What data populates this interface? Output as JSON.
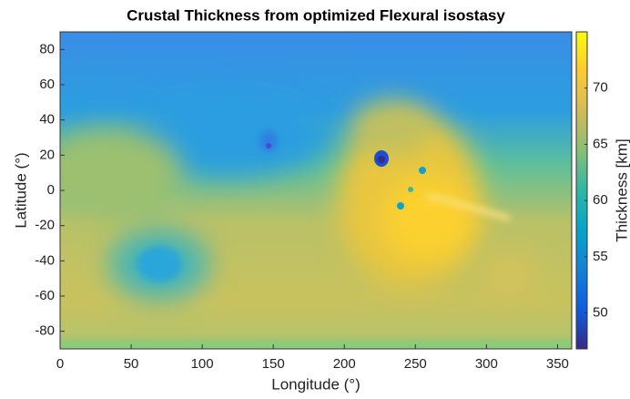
{
  "chart_data": {
    "type": "heatmap",
    "title": "Crustal Thickness from optimized Flexural isostasy",
    "xlabel": "Longitude (°)",
    "ylabel": "Latitude (°)",
    "colorbar_label": "Thickness [km]",
    "xlim": [
      0,
      360
    ],
    "xticks": [
      0,
      50,
      100,
      150,
      200,
      250,
      300,
      350
    ],
    "ylim": [
      -90,
      90
    ],
    "yticks": [
      -80,
      -60,
      -40,
      -20,
      0,
      20,
      40,
      60,
      80
    ],
    "clim": [
      46.8,
      75
    ],
    "cticks": [
      50,
      55,
      60,
      65,
      70
    ],
    "colormap": [
      "#352a87",
      "#0f5cdd",
      "#1481d6",
      "#06a4ca",
      "#2eb7a4",
      "#87bf77",
      "#d1bb59",
      "#fec832",
      "#f9fb0e"
    ]
  }
}
